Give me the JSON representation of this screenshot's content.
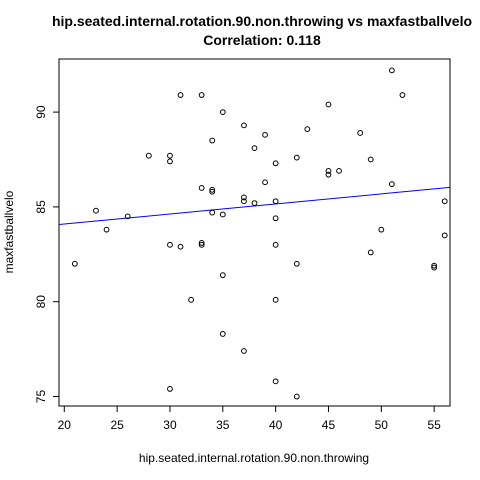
{
  "chart_data": {
    "type": "scatter",
    "title": "hip.seated.internal.rotation.90.non.throwing vs maxfastballvelo",
    "subtitle": "Correlation: 0.118",
    "xlabel": "hip.seated.internal.rotation.90.non.throwing",
    "ylabel": "maxfastballvelo",
    "xlim": [
      19.5,
      56.5
    ],
    "ylim": [
      74.5,
      92.8
    ],
    "xticks": [
      20,
      25,
      30,
      35,
      40,
      45,
      50,
      55
    ],
    "yticks": [
      75,
      80,
      85,
      90
    ],
    "grid": false,
    "point_color": "#000000",
    "line_color": "#0000ff",
    "regression_line": {
      "x": [
        19.5,
        56.5
      ],
      "y": [
        84.07,
        86.03
      ]
    },
    "points": [
      {
        "x": 21,
        "y": 82.0
      },
      {
        "x": 23,
        "y": 84.8
      },
      {
        "x": 24,
        "y": 83.8
      },
      {
        "x": 26,
        "y": 84.5
      },
      {
        "x": 28,
        "y": 87.7
      },
      {
        "x": 30,
        "y": 87.7
      },
      {
        "x": 30,
        "y": 87.4
      },
      {
        "x": 30,
        "y": 83.0
      },
      {
        "x": 30,
        "y": 75.4
      },
      {
        "x": 31,
        "y": 90.9
      },
      {
        "x": 31,
        "y": 82.9
      },
      {
        "x": 32,
        "y": 80.1
      },
      {
        "x": 33,
        "y": 90.9
      },
      {
        "x": 33,
        "y": 86.0
      },
      {
        "x": 33,
        "y": 83.1
      },
      {
        "x": 33,
        "y": 83.0
      },
      {
        "x": 34,
        "y": 88.5
      },
      {
        "x": 34,
        "y": 85.9
      },
      {
        "x": 34,
        "y": 85.8
      },
      {
        "x": 34,
        "y": 84.7
      },
      {
        "x": 35,
        "y": 90.0
      },
      {
        "x": 35,
        "y": 84.6
      },
      {
        "x": 35,
        "y": 81.4
      },
      {
        "x": 35,
        "y": 78.3
      },
      {
        "x": 37,
        "y": 89.3
      },
      {
        "x": 37,
        "y": 85.5
      },
      {
        "x": 37,
        "y": 85.3
      },
      {
        "x": 37,
        "y": 77.4
      },
      {
        "x": 38,
        "y": 88.1
      },
      {
        "x": 38,
        "y": 85.2
      },
      {
        "x": 39,
        "y": 88.8
      },
      {
        "x": 39,
        "y": 86.3
      },
      {
        "x": 40,
        "y": 87.3
      },
      {
        "x": 40,
        "y": 85.3
      },
      {
        "x": 40,
        "y": 84.4
      },
      {
        "x": 40,
        "y": 83.0
      },
      {
        "x": 40,
        "y": 80.1
      },
      {
        "x": 40,
        "y": 75.8
      },
      {
        "x": 42,
        "y": 87.6
      },
      {
        "x": 42,
        "y": 82.0
      },
      {
        "x": 42,
        "y": 75.0
      },
      {
        "x": 43,
        "y": 89.1
      },
      {
        "x": 45,
        "y": 90.4
      },
      {
        "x": 45,
        "y": 86.9
      },
      {
        "x": 45,
        "y": 86.7
      },
      {
        "x": 46,
        "y": 86.9
      },
      {
        "x": 48,
        "y": 88.9
      },
      {
        "x": 49,
        "y": 87.5
      },
      {
        "x": 49,
        "y": 82.6
      },
      {
        "x": 50,
        "y": 83.8
      },
      {
        "x": 51,
        "y": 92.2
      },
      {
        "x": 51,
        "y": 86.2
      },
      {
        "x": 52,
        "y": 90.9
      },
      {
        "x": 55,
        "y": 81.9
      },
      {
        "x": 55,
        "y": 81.8
      },
      {
        "x": 56,
        "y": 85.3
      },
      {
        "x": 56,
        "y": 83.5
      }
    ]
  }
}
